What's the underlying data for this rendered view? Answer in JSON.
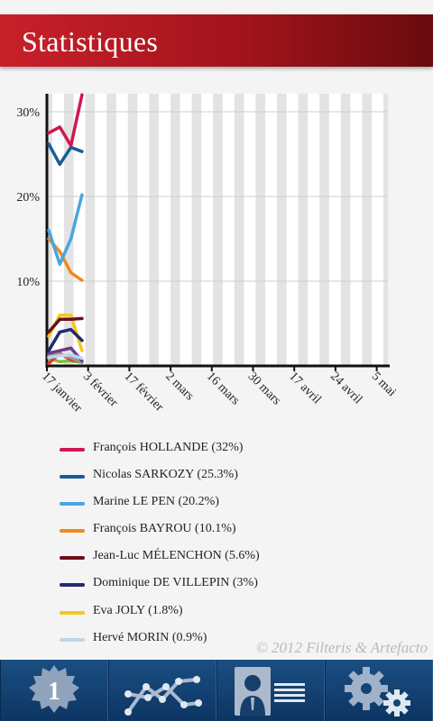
{
  "header": {
    "title": "Statistiques"
  },
  "copyright": "© 2012 Filteris & Artefacto",
  "tabs": {
    "first_round_number": "1",
    "items": [
      {
        "name": "first-round",
        "icon": "badge-1-icon"
      },
      {
        "name": "chart",
        "icon": "line-chart-icon"
      },
      {
        "name": "candidates",
        "icon": "person-list-icon"
      },
      {
        "name": "settings",
        "icon": "gears-icon"
      }
    ]
  },
  "colors": {
    "header": "#b51a24",
    "tabbar": "#134474",
    "gridband": "#e3e3e3"
  },
  "chart_data": {
    "type": "line",
    "y_ticks": [
      "10%",
      "20%",
      "30%"
    ],
    "ylim": [
      0,
      32
    ],
    "x_ticks": [
      "17 janvier",
      "3 février",
      "17 février",
      "2 mars",
      "16 mars",
      "30 mars",
      "17 avril",
      "24 avril",
      "5 mai"
    ],
    "series": [
      {
        "name": "François HOLLANDE (32%)",
        "color": "#d0174f",
        "values": [
          27.5,
          28.2,
          26.0,
          32.0
        ]
      },
      {
        "name": "Nicolas SARKOZY (25.3%)",
        "color": "#1a5c9a",
        "values": [
          26.2,
          23.8,
          25.8,
          25.3
        ]
      },
      {
        "name": "Marine LE PEN (20.2%)",
        "color": "#4aa5df",
        "values": [
          16.0,
          12.0,
          15.0,
          20.2
        ]
      },
      {
        "name": "François BAYROU (10.1%)",
        "color": "#f08a1c",
        "values": [
          15.0,
          13.5,
          11.0,
          10.1
        ]
      },
      {
        "name": "Jean-Luc MÉLENCHON (5.6%)",
        "color": "#6b0f1a",
        "values": [
          4.0,
          5.5,
          5.5,
          5.6
        ]
      },
      {
        "name": "Dominique DE VILLEPIN (3%)",
        "color": "#232a6c",
        "values": [
          1.8,
          4.0,
          4.3,
          3.0
        ]
      },
      {
        "name": "Eva JOLY (1.8%)",
        "color": "#f2c81c",
        "values": [
          3.5,
          6.0,
          6.0,
          1.8
        ]
      },
      {
        "name": "Hervé MORIN (0.9%)",
        "color": "#b9d7ee",
        "values": [
          1.0,
          1.2,
          1.3,
          0.9
        ]
      },
      {
        "color": "#6c3b8c",
        "values": [
          1.5,
          1.8,
          2.1,
          0.6
        ]
      },
      {
        "color": "#999999",
        "values": [
          1.2,
          1.4,
          1.0,
          0.4
        ]
      },
      {
        "color": "#e23a2b",
        "values": [
          0.3,
          1.5,
          0.7,
          0.5
        ]
      },
      {
        "color": "#7dc241",
        "values": [
          0.9,
          0.5,
          0.6,
          0.4
        ]
      }
    ]
  }
}
